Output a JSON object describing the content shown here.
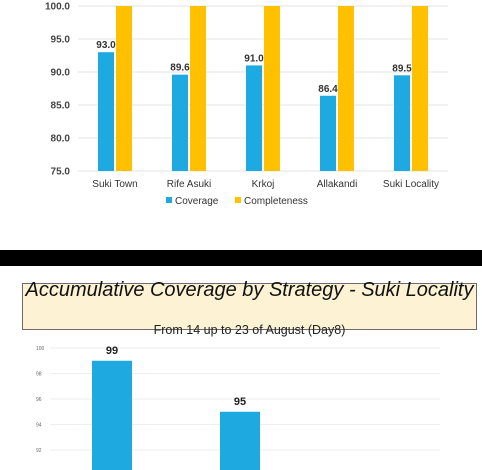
{
  "chart_data": [
    {
      "type": "bar",
      "categories": [
        "Suki Town",
        "Rife Asuki",
        "Krkoj",
        "Allakandi",
        "Suki Locality"
      ],
      "series": [
        {
          "name": "Coverage",
          "values": [
            93.0,
            89.6,
            91.0,
            86.4,
            89.5
          ],
          "color": "#1fa9e1",
          "labels": [
            "93.0",
            "89.6",
            "91.0",
            "86.4",
            "89.5"
          ]
        },
        {
          "name": "Completeness",
          "values": [
            100,
            100,
            100,
            100,
            100
          ],
          "color": "#ffc000"
        }
      ],
      "yticks": [
        "100.0",
        "95.0",
        "90.0",
        "85.0",
        "80.0",
        "75.0"
      ],
      "ylim": [
        75,
        100
      ],
      "grid": true,
      "legend_position": "bottom"
    },
    {
      "type": "bar",
      "title": "Accumulative Coverage by Strategy - Suki Locality",
      "subtitle": "From 14 up to 23 of August (Day8)",
      "values": [
        99,
        95
      ],
      "labels": [
        "99",
        "95"
      ],
      "color": "#1fa9e1",
      "yticks": [
        "100",
        "98",
        "96",
        "94",
        "92"
      ],
      "ylim": [
        91,
        100
      ],
      "grid": true
    }
  ]
}
